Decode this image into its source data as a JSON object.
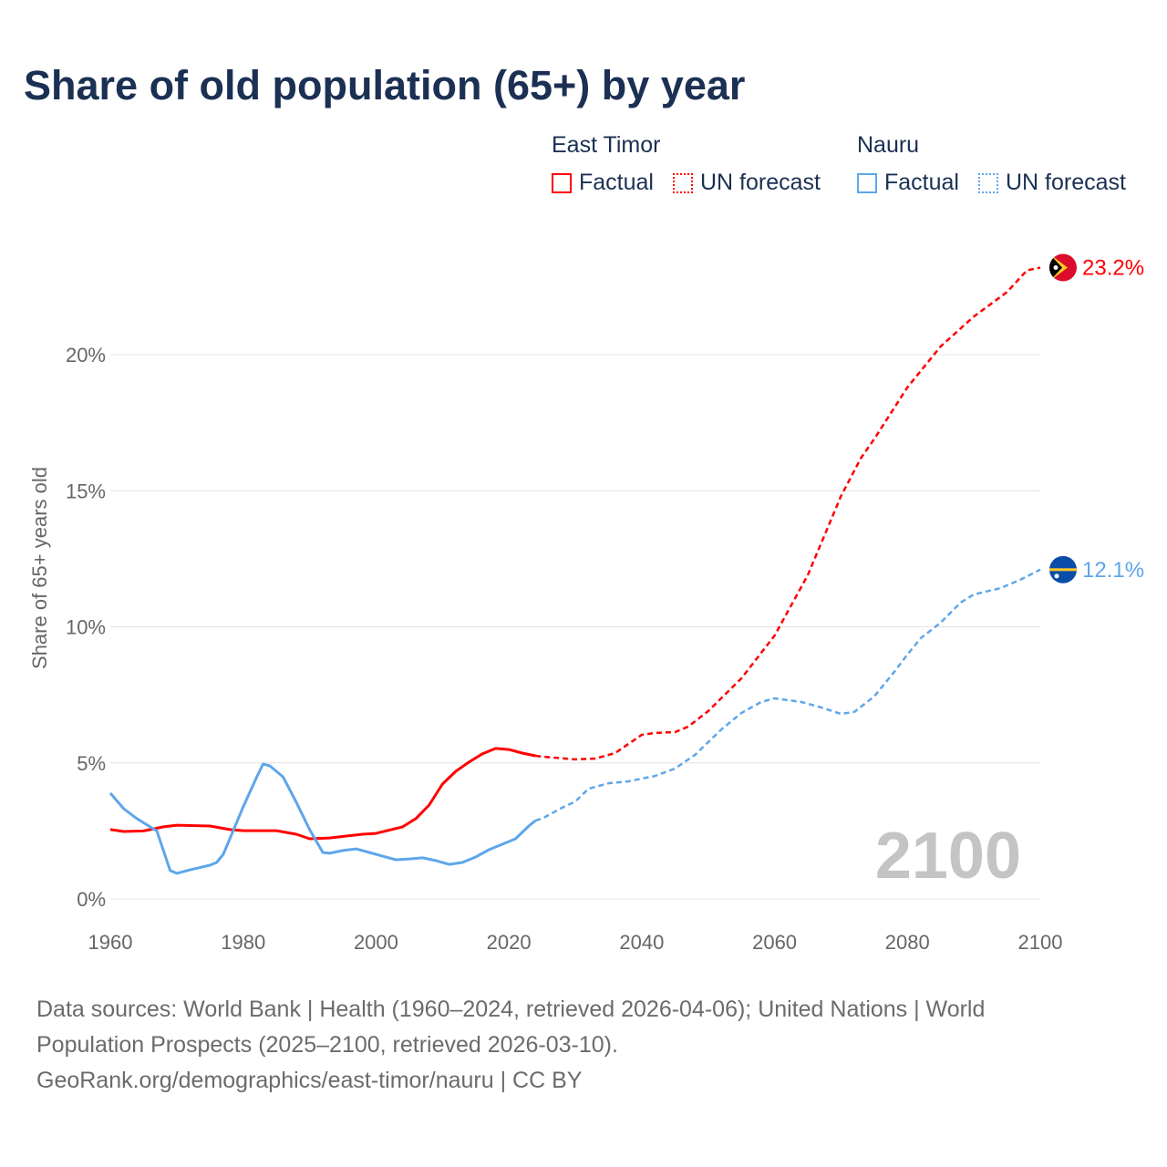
{
  "title": "Share of old population (65+) by year",
  "legend": {
    "groups": [
      {
        "name": "East Timor",
        "color": "#ff0000",
        "items": [
          "Factual",
          "UN forecast"
        ]
      },
      {
        "name": "Nauru",
        "color": "#5ea6ea",
        "items": [
          "Factual",
          "UN forecast"
        ]
      }
    ]
  },
  "year_label": "2100",
  "source": {
    "line1": "Data sources: World Bank | Health (1960–2024, retrieved 2026-04-06); United Nations | World Population Prospects (2025–2100, retrieved 2026-03-10).",
    "line2": "GeoRank.org/demographics/east-timor/nauru | CC BY"
  },
  "chart_data": {
    "type": "line",
    "title": "Share of old population (65+) by year",
    "xlabel": "",
    "ylabel": "Share of 65+ years old",
    "xlim": [
      1960,
      2100
    ],
    "ylim": [
      0,
      23.2
    ],
    "x_ticks": [
      "1960",
      "1980",
      "2000",
      "2020",
      "2040",
      "2060",
      "2080",
      "2100"
    ],
    "y_ticks": [
      {
        "v": 0,
        "label": "0%"
      },
      {
        "v": 5,
        "label": "5%"
      },
      {
        "v": 10,
        "label": "10%"
      },
      {
        "v": 15,
        "label": "15%"
      },
      {
        "v": 20,
        "label": "20%"
      }
    ],
    "grid": true,
    "series": [
      {
        "name": "East Timor",
        "color": "#ff0000",
        "end_label": "23.2%",
        "flag": "east-timor-flag",
        "factual": [
          [
            1960,
            2.55
          ],
          [
            1962,
            2.48
          ],
          [
            1965,
            2.5
          ],
          [
            1968,
            2.65
          ],
          [
            1970,
            2.71
          ],
          [
            1975,
            2.68
          ],
          [
            1978,
            2.55
          ],
          [
            1980,
            2.51
          ],
          [
            1985,
            2.51
          ],
          [
            1988,
            2.38
          ],
          [
            1990,
            2.21
          ],
          [
            1993,
            2.24
          ],
          [
            1998,
            2.38
          ],
          [
            2000,
            2.41
          ],
          [
            2004,
            2.65
          ],
          [
            2006,
            2.95
          ],
          [
            2008,
            3.45
          ],
          [
            2010,
            4.22
          ],
          [
            2012,
            4.69
          ],
          [
            2014,
            5.03
          ],
          [
            2016,
            5.33
          ],
          [
            2018,
            5.53
          ],
          [
            2020,
            5.49
          ],
          [
            2022,
            5.36
          ],
          [
            2024,
            5.26
          ]
        ],
        "forecast": [
          [
            2024,
            5.26
          ],
          [
            2025,
            5.23
          ],
          [
            2030,
            5.13
          ],
          [
            2033,
            5.16
          ],
          [
            2036,
            5.36
          ],
          [
            2040,
            6.03
          ],
          [
            2042,
            6.1
          ],
          [
            2045,
            6.13
          ],
          [
            2047,
            6.33
          ],
          [
            2050,
            6.9
          ],
          [
            2055,
            8.1
          ],
          [
            2060,
            9.68
          ],
          [
            2065,
            11.9
          ],
          [
            2070,
            14.8
          ],
          [
            2073,
            16.2
          ],
          [
            2075,
            16.9
          ],
          [
            2080,
            18.8
          ],
          [
            2085,
            20.3
          ],
          [
            2090,
            21.4
          ],
          [
            2095,
            22.3
          ],
          [
            2098,
            23.1
          ],
          [
            2100,
            23.2
          ]
        ]
      },
      {
        "name": "Nauru",
        "color": "#5ea6ea",
        "end_label": "12.1%",
        "flag": "nauru-flag",
        "factual": [
          [
            1960,
            3.89
          ],
          [
            1962,
            3.32
          ],
          [
            1964,
            2.95
          ],
          [
            1966,
            2.65
          ],
          [
            1967,
            2.5
          ],
          [
            1969,
            1.05
          ],
          [
            1970,
            0.94
          ],
          [
            1972,
            1.07
          ],
          [
            1975,
            1.24
          ],
          [
            1976,
            1.34
          ],
          [
            1977,
            1.64
          ],
          [
            1980,
            3.38
          ],
          [
            1982,
            4.46
          ],
          [
            1983,
            4.96
          ],
          [
            1984,
            4.89
          ],
          [
            1986,
            4.49
          ],
          [
            1988,
            3.55
          ],
          [
            1990,
            2.55
          ],
          [
            1992,
            1.71
          ],
          [
            1993,
            1.68
          ],
          [
            1995,
            1.78
          ],
          [
            1997,
            1.84
          ],
          [
            1999,
            1.71
          ],
          [
            2001,
            1.57
          ],
          [
            2003,
            1.44
          ],
          [
            2005,
            1.47
          ],
          [
            2007,
            1.51
          ],
          [
            2009,
            1.41
          ],
          [
            2011,
            1.27
          ],
          [
            2013,
            1.34
          ],
          [
            2015,
            1.54
          ],
          [
            2017,
            1.81
          ],
          [
            2019,
            2.01
          ],
          [
            2021,
            2.21
          ],
          [
            2023,
            2.68
          ],
          [
            2024,
            2.88
          ]
        ],
        "forecast": [
          [
            2024,
            2.88
          ],
          [
            2025,
            2.95
          ],
          [
            2028,
            3.35
          ],
          [
            2030,
            3.58
          ],
          [
            2032,
            4.05
          ],
          [
            2035,
            4.25
          ],
          [
            2038,
            4.32
          ],
          [
            2042,
            4.52
          ],
          [
            2045,
            4.79
          ],
          [
            2048,
            5.29
          ],
          [
            2052,
            6.23
          ],
          [
            2055,
            6.83
          ],
          [
            2058,
            7.24
          ],
          [
            2060,
            7.37
          ],
          [
            2064,
            7.24
          ],
          [
            2067,
            7.04
          ],
          [
            2070,
            6.8
          ],
          [
            2072,
            6.87
          ],
          [
            2075,
            7.44
          ],
          [
            2078,
            8.34
          ],
          [
            2080,
            8.98
          ],
          [
            2082,
            9.58
          ],
          [
            2085,
            10.15
          ],
          [
            2088,
            10.89
          ],
          [
            2090,
            11.19
          ],
          [
            2094,
            11.42
          ],
          [
            2097,
            11.73
          ],
          [
            2100,
            12.1
          ]
        ]
      }
    ]
  }
}
